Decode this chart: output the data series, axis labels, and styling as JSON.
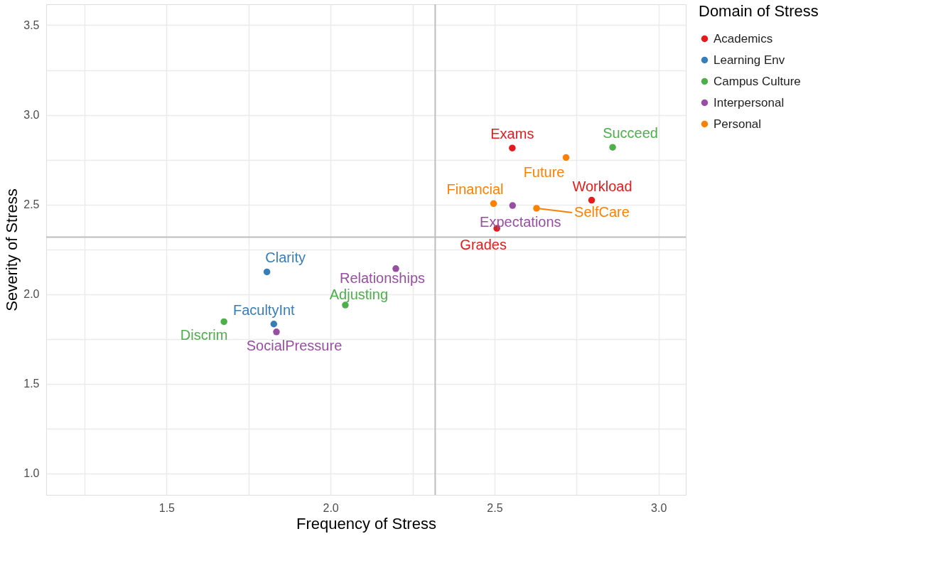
{
  "chart_data": {
    "type": "scatter",
    "xlabel": "Frequency of Stress",
    "ylabel": "Severity of Stress",
    "legend_title": "Domain of Stress",
    "series": [
      {
        "name": "Academics",
        "color": "#e41a1c",
        "x": [
          2.554,
          2.796,
          2.507
        ],
        "values": [
          2.815,
          2.524,
          2.367
        ]
      },
      {
        "name": "Learning Env",
        "color": "#377eb8",
        "x": [
          1.806,
          1.827
        ],
        "values": [
          2.124,
          1.833
        ]
      },
      {
        "name": "Campus Culture",
        "color": "#4daf4a",
        "x": [
          2.86,
          2.045,
          1.675
        ],
        "values": [
          2.819,
          1.939,
          1.846
        ]
      },
      {
        "name": "Interpersonal",
        "color": "#984ea3",
        "x": [
          2.199,
          2.555,
          1.835
        ],
        "values": [
          2.142,
          2.494,
          1.789
        ]
      },
      {
        "name": "Personal",
        "color": "#ff7f00",
        "x": [
          2.718,
          2.497,
          2.628
        ],
        "values": [
          2.762,
          2.505,
          2.479
        ]
      }
    ],
    "annotations": [
      {
        "text": "Exams",
        "x": 2.554,
        "y": 2.815
      },
      {
        "text": "Workload",
        "x": 2.796,
        "y": 2.524
      },
      {
        "text": "Grades",
        "x": 2.507,
        "y": 2.367
      },
      {
        "text": "Clarity",
        "x": 1.806,
        "y": 2.124
      },
      {
        "text": "FacultyInt",
        "x": 1.827,
        "y": 1.833
      },
      {
        "text": "Succeed",
        "x": 2.86,
        "y": 2.819
      },
      {
        "text": "Adjusting",
        "x": 2.045,
        "y": 1.939
      },
      {
        "text": "Discrim",
        "x": 1.675,
        "y": 1.846
      },
      {
        "text": "Relationships",
        "x": 2.199,
        "y": 2.142
      },
      {
        "text": "Expectations",
        "x": 2.555,
        "y": 2.494
      },
      {
        "text": "SocialPressure",
        "x": 1.835,
        "y": 1.789
      },
      {
        "text": "Future",
        "x": 2.718,
        "y": 2.762
      },
      {
        "text": "Financial",
        "x": 2.497,
        "y": 2.505
      },
      {
        "text": "SelfCare",
        "x": 2.628,
        "y": 2.479
      }
    ],
    "ref_lines": [
      {
        "axis": "x",
        "value": 2.319,
        "color": "#bdbdbd"
      },
      {
        "axis": "y",
        "value": 2.318,
        "color": "#bdbdbd"
      }
    ],
    "xlim": [
      1.133,
      3.083
    ],
    "ylim": [
      0.88,
      3.617
    ],
    "xticks": [
      {
        "value": 1.25,
        "label": null
      },
      1.5,
      {
        "value": 1.75,
        "label": null
      },
      {
        "value": 2.0,
        "label": "2.0"
      },
      {
        "value": 2.25,
        "label": null
      },
      2.5,
      {
        "value": 2.75,
        "label": null
      },
      {
        "value": 3.0,
        "label": "3.0"
      }
    ],
    "yticks": [
      {
        "value": 1.0,
        "label": "1.0"
      },
      {
        "value": 1.25,
        "label": null
      },
      1.5,
      {
        "value": 1.75,
        "label": null
      },
      {
        "value": 2.0,
        "label": "2.0"
      },
      {
        "value": 2.25,
        "label": null
      },
      2.5,
      {
        "value": 2.75,
        "label": null
      },
      {
        "value": 3.0,
        "label": "3.0"
      },
      {
        "value": 3.25,
        "label": null
      },
      3.5
    ],
    "grid": true,
    "legend": "right",
    "marker": "circle"
  }
}
